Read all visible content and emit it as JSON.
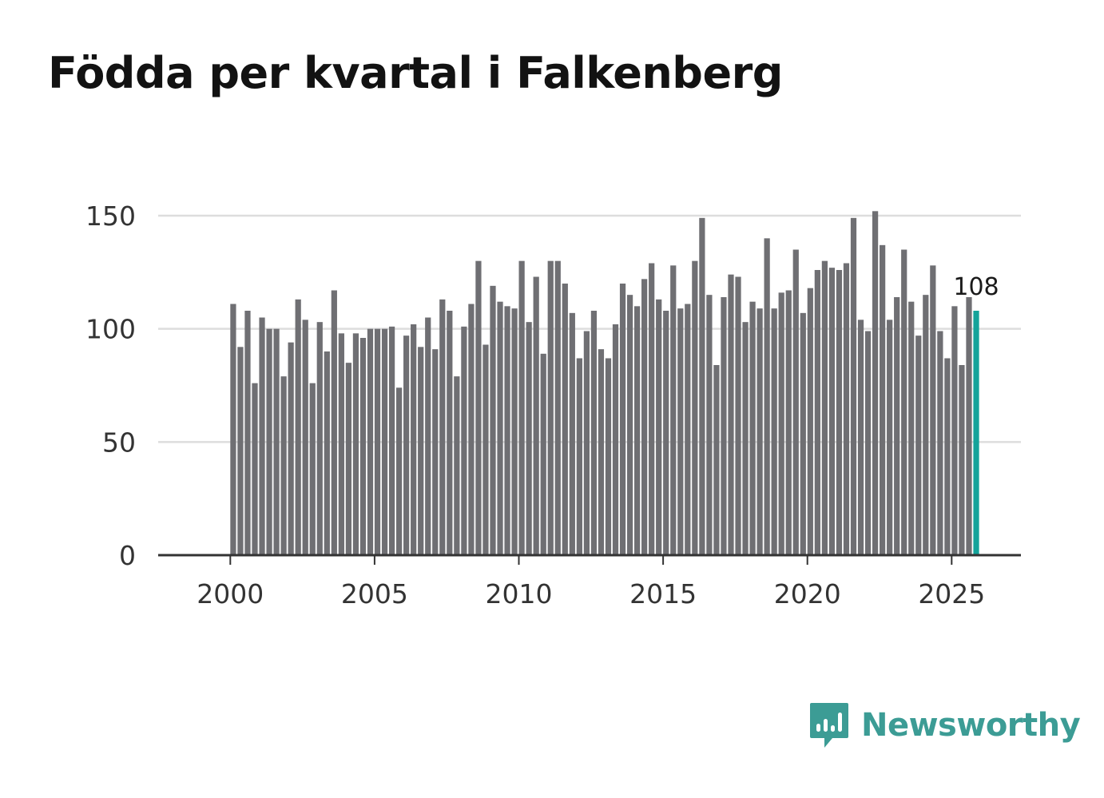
{
  "title": "Födda per kvartal i Falkenberg",
  "brand": "Newsworthy",
  "colors": {
    "bar": "#6f6f73",
    "highlight": "#13a39a",
    "grid": "#dddddd",
    "axis": "#333333",
    "brand": "#3c9c95"
  },
  "chart_data": {
    "type": "bar",
    "title": "Födda per kvartal i Falkenberg",
    "xlabel": "",
    "ylabel": "",
    "x_start": 2000,
    "x_step": 0.25,
    "xlim": [
      1997.5,
      2027.4
    ],
    "ylim": [
      0,
      160
    ],
    "yticks": [
      0,
      50,
      100,
      150
    ],
    "xticks": [
      2000,
      2005,
      2010,
      2015,
      2020,
      2025
    ],
    "grid": true,
    "values": [
      111,
      92,
      108,
      76,
      105,
      100,
      100,
      79,
      94,
      113,
      104,
      76,
      103,
      90,
      117,
      98,
      85,
      98,
      96,
      100,
      100,
      100,
      101,
      74,
      97,
      102,
      92,
      105,
      91,
      113,
      108,
      79,
      101,
      111,
      130,
      93,
      119,
      112,
      110,
      109,
      130,
      103,
      123,
      89,
      130,
      130,
      120,
      107,
      87,
      99,
      108,
      91,
      87,
      102,
      120,
      115,
      110,
      122,
      129,
      113,
      108,
      128,
      109,
      111,
      130,
      149,
      115,
      84,
      114,
      124,
      123,
      103,
      112,
      109,
      140,
      109,
      116,
      117,
      135,
      107,
      118,
      126,
      130,
      127,
      126,
      129,
      149,
      104,
      99,
      152,
      137,
      104,
      114,
      135,
      112,
      97,
      115,
      128,
      99,
      87,
      110,
      84,
      114,
      108
    ],
    "highlight_label": "108"
  }
}
